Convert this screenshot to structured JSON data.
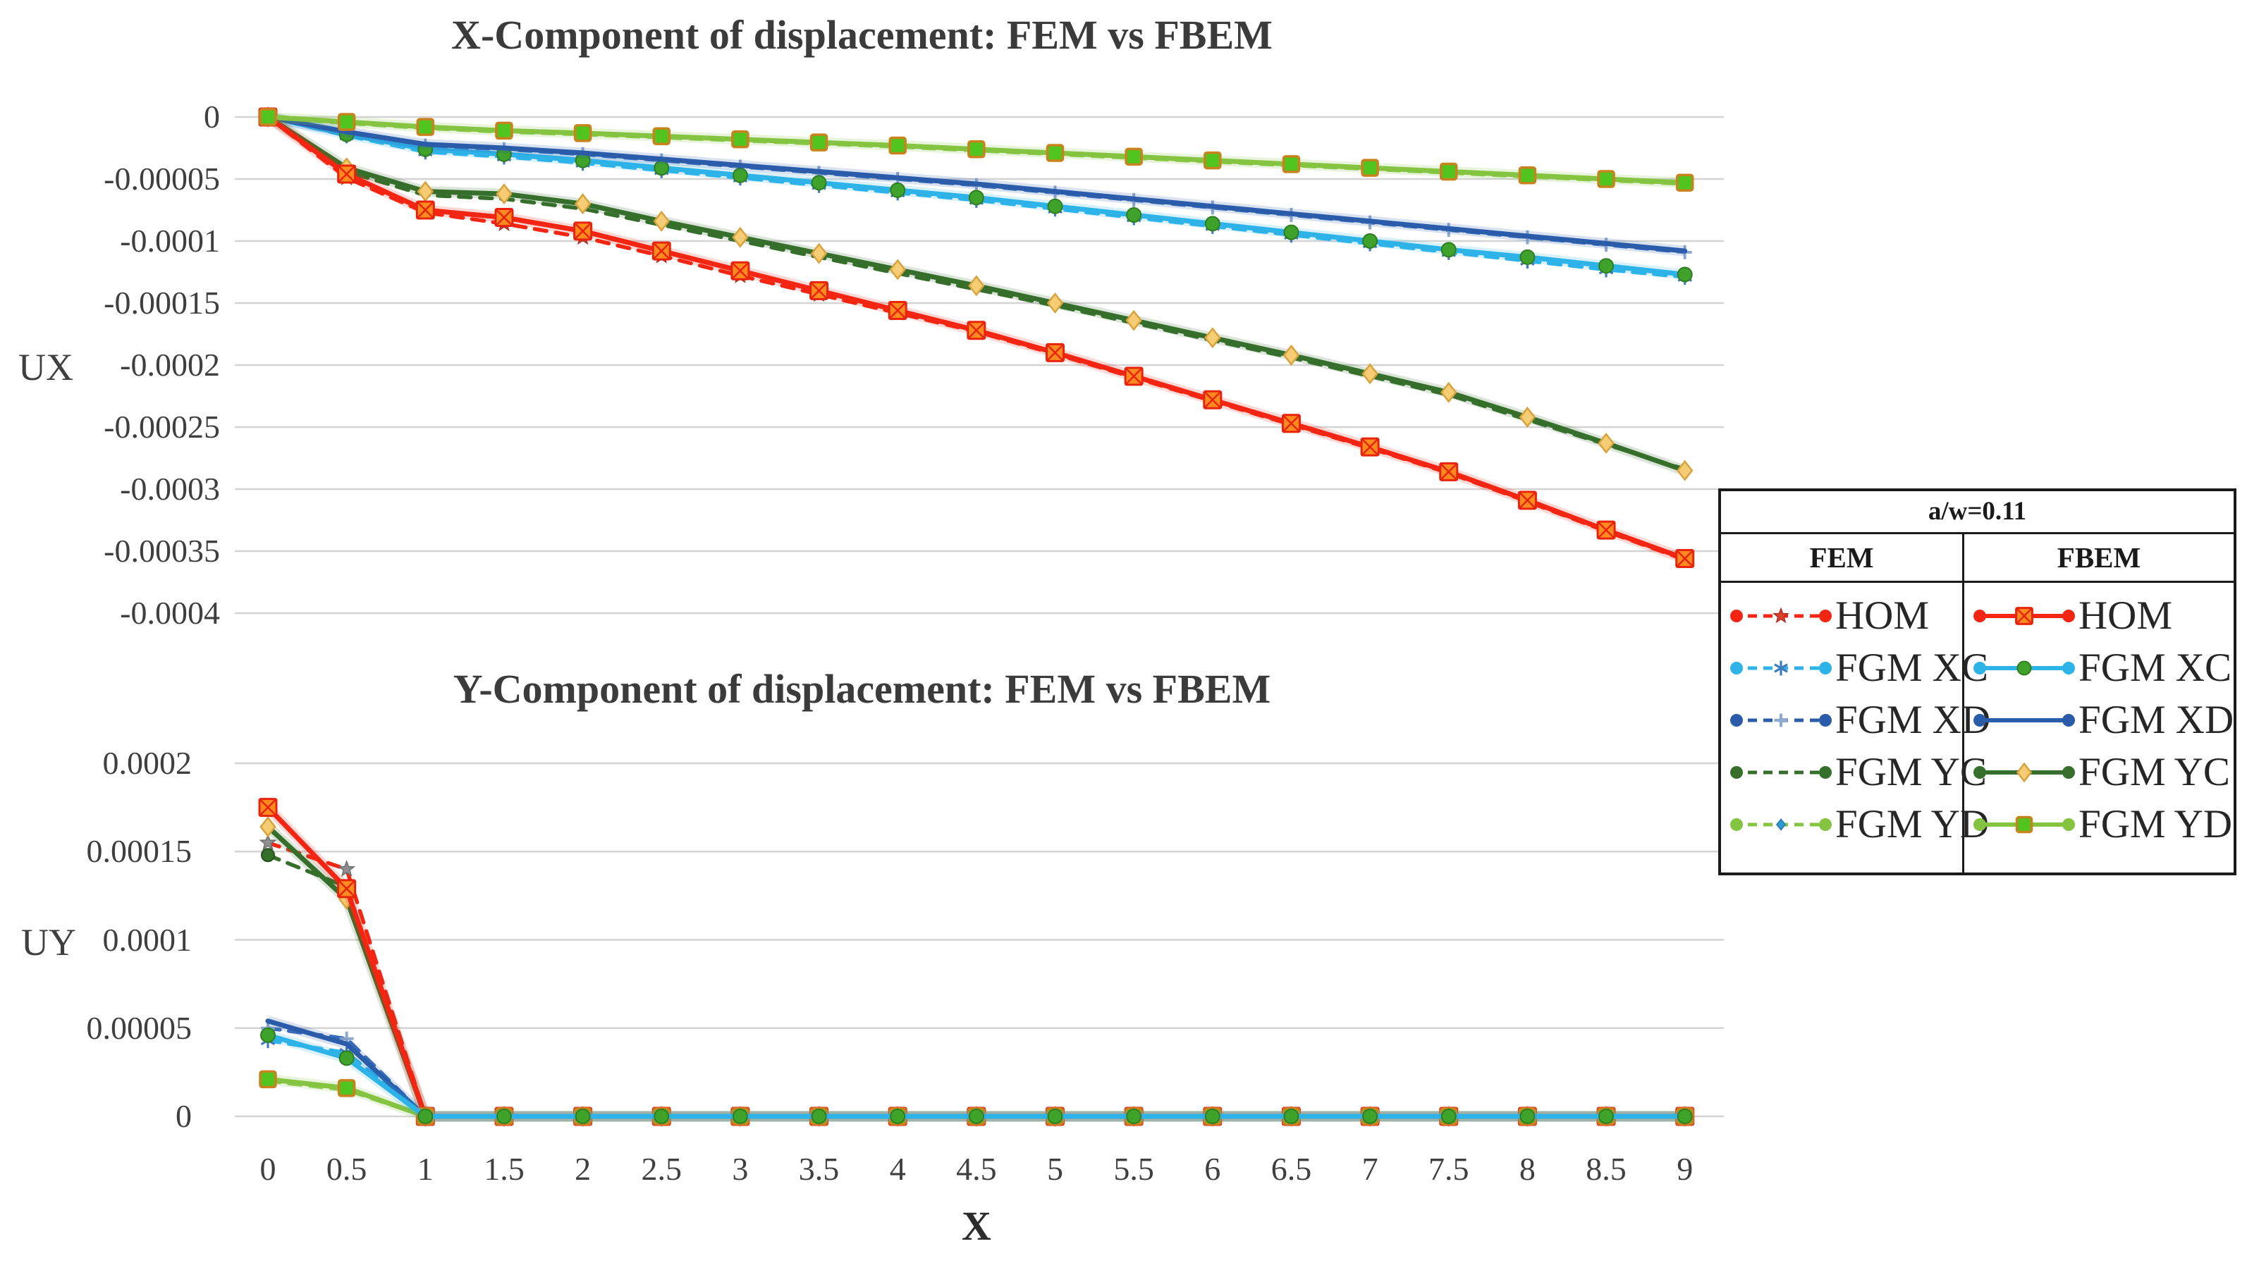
{
  "figure": {
    "ux_axis_label": "UX",
    "uy_axis_label": "UY",
    "x_axis_label": "X"
  },
  "legend": {
    "header": "a/w=0.11",
    "columns": [
      {
        "label": "FEM",
        "entries": [
          {
            "label": "HOM",
            "line_color": "#F42613",
            "dashed": true,
            "marker": "star",
            "marker_color": "#D8432E",
            "marker_stroke": "#B22A1C"
          },
          {
            "label": "FGM XC",
            "line_color": "#2EB3E9",
            "dashed": true,
            "marker": "asterisk",
            "marker_color": "#3E7CC0",
            "marker_stroke": "#3E7CC0"
          },
          {
            "label": "FGM XD",
            "line_color": "#2A5CAA",
            "dashed": true,
            "marker": "plus",
            "marker_color": "#8FA8CF",
            "marker_stroke": "#8FA8CF"
          },
          {
            "label": "FGM YC",
            "line_color": "#356F2B",
            "dashed": true,
            "marker": "none",
            "marker_color": "#356F2B",
            "marker_stroke": "#356F2B"
          },
          {
            "label": "FGM YD",
            "line_color": "#84C441",
            "dashed": true,
            "marker": "diamond-sm",
            "marker_color": "#2E9BD6",
            "marker_stroke": "#2679A8"
          }
        ]
      },
      {
        "label": "FBEM",
        "entries": [
          {
            "label": "HOM",
            "line_color": "#F42613",
            "dashed": false,
            "marker": "square-x",
            "marker_color": "#FF8A1E",
            "marker_stroke": "#E8240F"
          },
          {
            "label": "FGM XC",
            "line_color": "#2EB3E9",
            "dashed": false,
            "marker": "circle",
            "marker_color": "#3FA32B",
            "marker_stroke": "#2F7D1F"
          },
          {
            "label": "FGM XD",
            "line_color": "#2A5CAA",
            "dashed": false,
            "marker": "none",
            "marker_color": "#2A5CAA",
            "marker_stroke": "#2A5CAA"
          },
          {
            "label": "FGM YC",
            "line_color": "#356F2B",
            "dashed": false,
            "marker": "diamond",
            "marker_color": "#F6CD74",
            "marker_stroke": "#D8A33C"
          },
          {
            "label": "FGM YD",
            "line_color": "#84C441",
            "dashed": false,
            "marker": "square",
            "marker_color": "#52C41F",
            "marker_stroke": "#C8831E"
          }
        ]
      }
    ]
  },
  "chart_data": [
    {
      "type": "line",
      "title": "X-Component of displacement: FEM vs FBEM",
      "ylabel": "UX",
      "xlabel": "",
      "grid": true,
      "legend_position": "right-table",
      "ylim": [
        -0.0004,
        0
      ],
      "xlim": [
        0,
        9
      ],
      "x": [
        0,
        0.5,
        1,
        1.5,
        2,
        2.5,
        3,
        3.5,
        4,
        4.5,
        5,
        5.5,
        6,
        6.5,
        7,
        7.5,
        8,
        8.5,
        9
      ],
      "y_ticks": [
        "0",
        "-0.00005",
        "-0.0001",
        "-0.00015",
        "-0.0002",
        "-0.00025",
        "-0.0003",
        "-0.00035",
        "-0.0004"
      ],
      "series": [
        {
          "id": "xc-fem",
          "label": "FGM XC",
          "method": "FEM",
          "color": "#2EB3E9",
          "dashed": true,
          "marker": "asterisk",
          "marker_color": "#3E7CC0",
          "marker_stroke": "#3E7CC0",
          "values": [
            0,
            -1.5e-05,
            -2.8e-05,
            -3.2e-05,
            -3.7e-05,
            -4.3e-05,
            -4.9e-05,
            -5.5e-05,
            -6.1e-05,
            -6.7e-05,
            -7.4e-05,
            -8.1e-05,
            -8.8e-05,
            -9.5e-05,
            -0.000102,
            -0.000109,
            -0.000116,
            -0.000123,
            -0.000129
          ]
        },
        {
          "id": "xd-fem",
          "label": "FGM XD",
          "method": "FEM",
          "color": "#3B6FBC",
          "dashed": true,
          "marker": "plus",
          "marker_color": "#8FA8CF",
          "marker_stroke": "#8FA8CF",
          "values": [
            0,
            -1.3e-05,
            -2.3e-05,
            -2.6e-05,
            -3e-05,
            -3.5e-05,
            -4e-05,
            -4.5e-05,
            -5e-05,
            -5.5e-05,
            -6.1e-05,
            -6.7e-05,
            -7.3e-05,
            -7.9e-05,
            -8.5e-05,
            -9.1e-05,
            -9.7e-05,
            -0.000103,
            -0.000109
          ]
        },
        {
          "id": "yc-fem",
          "label": "FGM YC",
          "method": "FEM",
          "color": "#356F2B",
          "dashed": true,
          "marker": "none",
          "marker_color": "#356F2B",
          "marker_stroke": "#356F2B",
          "values": [
            0,
            -4.4e-05,
            -6.3e-05,
            -6.6e-05,
            -7.4e-05,
            -8.7e-05,
            -0.0001,
            -0.000113,
            -0.000126,
            -0.000139,
            -0.000152,
            -0.000166,
            -0.00018,
            -0.000194,
            -0.000209,
            -0.000224,
            -0.000244,
            -0.000264,
            -0.000284
          ]
        },
        {
          "id": "hom-fem",
          "label": "HOM",
          "method": "FEM",
          "color": "#F42613",
          "dashed": true,
          "marker": "star",
          "marker_color": "#D8432E",
          "marker_stroke": "#B22A1C",
          "values": [
            0,
            -4.9e-05,
            -7.7e-05,
            -8.6e-05,
            -9.7e-05,
            -0.000112,
            -0.000128,
            -0.000143,
            -0.000158,
            -0.000173,
            -0.000191,
            -0.00021,
            -0.000229,
            -0.000248,
            -0.000267,
            -0.000287,
            -0.00031,
            -0.000334,
            -0.000357
          ]
        },
        {
          "id": "yd-fem",
          "label": "FGM YD",
          "method": "FEM",
          "color": "#8FCE55",
          "dashed": true,
          "marker": "diamond-sm",
          "marker_color": "#2E9BD6",
          "marker_stroke": "#2679A8",
          "values": [
            0,
            -5e-06,
            -9e-06,
            -1.2e-05,
            -1.4e-05,
            -1.65e-05,
            -1.9e-05,
            -2.15e-05,
            -2.4e-05,
            -2.7e-05,
            -3e-05,
            -3.3e-05,
            -3.6e-05,
            -3.9e-05,
            -4.2e-05,
            -4.5e-05,
            -4.8e-05,
            -5.1e-05,
            -5.4e-05
          ]
        },
        {
          "id": "xc-fbem",
          "label": "FGM XC",
          "method": "FBEM",
          "color": "#2EB3E9",
          "dashed": false,
          "marker": "circle",
          "marker_color": "#3FA32B",
          "marker_stroke": "#2F7D1F",
          "values": [
            0,
            -1.4e-05,
            -2.6e-05,
            -3e-05,
            -3.5e-05,
            -4.1e-05,
            -4.7e-05,
            -5.3e-05,
            -5.9e-05,
            -6.5e-05,
            -7.2e-05,
            -7.9e-05,
            -8.6e-05,
            -9.3e-05,
            -0.0001,
            -0.000107,
            -0.000113,
            -0.00012,
            -0.000127
          ]
        },
        {
          "id": "xd-fbem",
          "label": "FGM XD",
          "method": "FBEM",
          "color": "#2A5CAA",
          "dashed": false,
          "marker": "none",
          "marker_color": "#2A5CAA",
          "marker_stroke": "#2A5CAA",
          "values": [
            0,
            -1.2e-05,
            -2.2e-05,
            -2.5e-05,
            -2.9e-05,
            -3.4e-05,
            -3.9e-05,
            -4.4e-05,
            -4.9e-05,
            -5.4e-05,
            -6e-05,
            -6.6e-05,
            -7.2e-05,
            -7.8e-05,
            -8.4e-05,
            -9e-05,
            -9.6e-05,
            -0.000102,
            -0.000108
          ]
        },
        {
          "id": "yc-fbem",
          "label": "FGM YC",
          "method": "FBEM",
          "color": "#356F2B",
          "dashed": false,
          "marker": "diamond",
          "marker_color": "#F6CD74",
          "marker_stroke": "#D8A33C",
          "values": [
            0,
            -4.1e-05,
            -6e-05,
            -6.2e-05,
            -7e-05,
            -8.4e-05,
            -9.7e-05,
            -0.00011,
            -0.000123,
            -0.000136,
            -0.00015,
            -0.000164,
            -0.000178,
            -0.000192,
            -0.000207,
            -0.000222,
            -0.000242,
            -0.000263,
            -0.000285
          ]
        },
        {
          "id": "hom-fbem",
          "label": "HOM",
          "method": "FBEM",
          "color": "#F42613",
          "dashed": false,
          "marker": "square-x",
          "marker_color": "#FF8A1E",
          "marker_stroke": "#E8240F",
          "values": [
            0,
            -4.6e-05,
            -7.5e-05,
            -8.1e-05,
            -9.2e-05,
            -0.000108,
            -0.000124,
            -0.00014,
            -0.000156,
            -0.000172,
            -0.00019,
            -0.000209,
            -0.000228,
            -0.000247,
            -0.000266,
            -0.000286,
            -0.000309,
            -0.000333,
            -0.000356
          ]
        },
        {
          "id": "yd-fbem",
          "label": "FGM YD",
          "method": "FBEM",
          "color": "#84C441",
          "dashed": false,
          "marker": "square",
          "marker_color": "#52C41F",
          "marker_stroke": "#C8831E",
          "values": [
            0,
            -4e-06,
            -8e-06,
            -1.1e-05,
            -1.3e-05,
            -1.55e-05,
            -1.8e-05,
            -2.05e-05,
            -2.3e-05,
            -2.6e-05,
            -2.9e-05,
            -3.2e-05,
            -3.5e-05,
            -3.8e-05,
            -4.1e-05,
            -4.4e-05,
            -4.7e-05,
            -5e-05,
            -5.3e-05
          ]
        }
      ]
    },
    {
      "type": "line",
      "title": "Y-Component of displacement: FEM vs FBEM",
      "ylabel": "UY",
      "xlabel": "X",
      "grid": true,
      "legend_position": "right-table",
      "ylim": [
        0,
        0.0002
      ],
      "xlim": [
        0,
        9
      ],
      "x": [
        0,
        0.5,
        1,
        1.5,
        2,
        2.5,
        3,
        3.5,
        4,
        4.5,
        5,
        5.5,
        6,
        6.5,
        7,
        7.5,
        8,
        8.5,
        9
      ],
      "x_tick_labels": [
        "0",
        "0.5",
        "1",
        "1.5",
        "2",
        "2.5",
        "3",
        "3.5",
        "4",
        "4.5",
        "5",
        "5.5",
        "6",
        "6.5",
        "7",
        "7.5",
        "8",
        "8.5",
        "9"
      ],
      "y_ticks": [
        "0.0002",
        "0.00015",
        "0.0001",
        "0.00005",
        "0"
      ],
      "series": [
        {
          "id": "xd-fem",
          "label": "FGM XD",
          "method": "FEM",
          "color": "#3B6FBC",
          "dashed": true,
          "marker": "plus",
          "marker_color": "#8FA8CF",
          "marker_stroke": "#8FA8CF",
          "values": [
            5e-05,
            4.4e-05,
            0,
            0,
            0,
            0,
            0,
            0,
            0,
            0,
            0,
            0,
            0,
            0,
            0,
            0,
            0,
            0,
            0
          ]
        },
        {
          "id": "xc-fem",
          "label": "FGM XC",
          "method": "FEM",
          "color": "#2EB3E9",
          "dashed": true,
          "marker": "asterisk",
          "marker_color": "#3E7CC0",
          "marker_stroke": "#3E7CC0",
          "values": [
            4.3e-05,
            3.6e-05,
            0,
            0,
            0,
            0,
            0,
            0,
            0,
            0,
            0,
            0,
            0,
            0,
            0,
            0,
            0,
            0,
            0
          ]
        },
        {
          "id": "yc-fem",
          "label": "FGM YC",
          "method": "FEM",
          "color": "#356F2B",
          "dashed": true,
          "marker": "circle-sm",
          "marker_color": "#356F2B",
          "marker_stroke": "#24511C",
          "values": [
            0.000148,
            0.00013,
            0,
            0,
            0,
            0,
            0,
            0,
            0,
            0,
            0,
            0,
            0,
            0,
            0,
            0,
            0,
            0,
            0
          ]
        },
        {
          "id": "hom-fem",
          "label": "HOM",
          "method": "FEM",
          "color": "#F42613",
          "dashed": true,
          "marker": "star",
          "marker_color": "#8E8E8E",
          "marker_stroke": "#6E6E6E",
          "values": [
            0.000155,
            0.00014,
            0,
            0,
            0,
            0,
            0,
            0,
            0,
            0,
            0,
            0,
            0,
            0,
            0,
            0,
            0,
            0,
            0
          ]
        },
        {
          "id": "yd-fem",
          "label": "FGM YD",
          "method": "FEM",
          "color": "#8FCE55",
          "dashed": true,
          "marker": "diamond-sm",
          "marker_color": "#2E9BD6",
          "marker_stroke": "#2679A8",
          "values": [
            2e-05,
            1.5e-05,
            0,
            0,
            0,
            0,
            0,
            0,
            0,
            0,
            0,
            0,
            0,
            0,
            0,
            0,
            0,
            0,
            0
          ]
        },
        {
          "id": "xd-fbem",
          "label": "FGM XD",
          "method": "FBEM",
          "color": "#2A5CAA",
          "dashed": false,
          "marker": "none",
          "marker_color": "#2A5CAA",
          "marker_stroke": "#2A5CAA",
          "values": [
            5.4e-05,
            4.1e-05,
            0,
            0,
            0,
            0,
            0,
            0,
            0,
            0,
            0,
            0,
            0,
            0,
            0,
            0,
            0,
            0,
            0
          ]
        },
        {
          "id": "yc-fbem",
          "label": "FGM YC",
          "method": "FBEM",
          "color": "#356F2B",
          "dashed": false,
          "marker": "diamond",
          "marker_color": "#F6CD74",
          "marker_stroke": "#D8A33C",
          "values": [
            0.000164,
            0.000123,
            0,
            0,
            0,
            0,
            0,
            0,
            0,
            0,
            0,
            0,
            0,
            0,
            0,
            0,
            0,
            0,
            0
          ]
        },
        {
          "id": "hom-fbem",
          "label": "HOM",
          "method": "FBEM",
          "color": "#F42613",
          "dashed": false,
          "marker": "square-x",
          "marker_color": "#FF8A1E",
          "marker_stroke": "#E8240F",
          "values": [
            0.000175,
            0.000129,
            0,
            0,
            0,
            0,
            0,
            0,
            0,
            0,
            0,
            0,
            0,
            0,
            0,
            0,
            0,
            0,
            0
          ]
        },
        {
          "id": "yd-fbem",
          "label": "FGM YD",
          "method": "FBEM",
          "color": "#84C441",
          "dashed": false,
          "marker": "square",
          "marker_color": "#52C41F",
          "marker_stroke": "#C8831E",
          "values": [
            2.1e-05,
            1.6e-05,
            0,
            0,
            0,
            0,
            0,
            0,
            0,
            0,
            0,
            0,
            0,
            0,
            0,
            0,
            0,
            0,
            0
          ]
        },
        {
          "id": "xc-fbem",
          "label": "FGM XC",
          "method": "FBEM",
          "color": "#2EB3E9",
          "dashed": false,
          "marker": "circle",
          "marker_color": "#3FA32B",
          "marker_stroke": "#2F7D1F",
          "values": [
            4.6e-05,
            3.3e-05,
            0,
            0,
            0,
            0,
            0,
            0,
            0,
            0,
            0,
            0,
            0,
            0,
            0,
            0,
            0,
            0,
            0
          ]
        }
      ]
    }
  ]
}
